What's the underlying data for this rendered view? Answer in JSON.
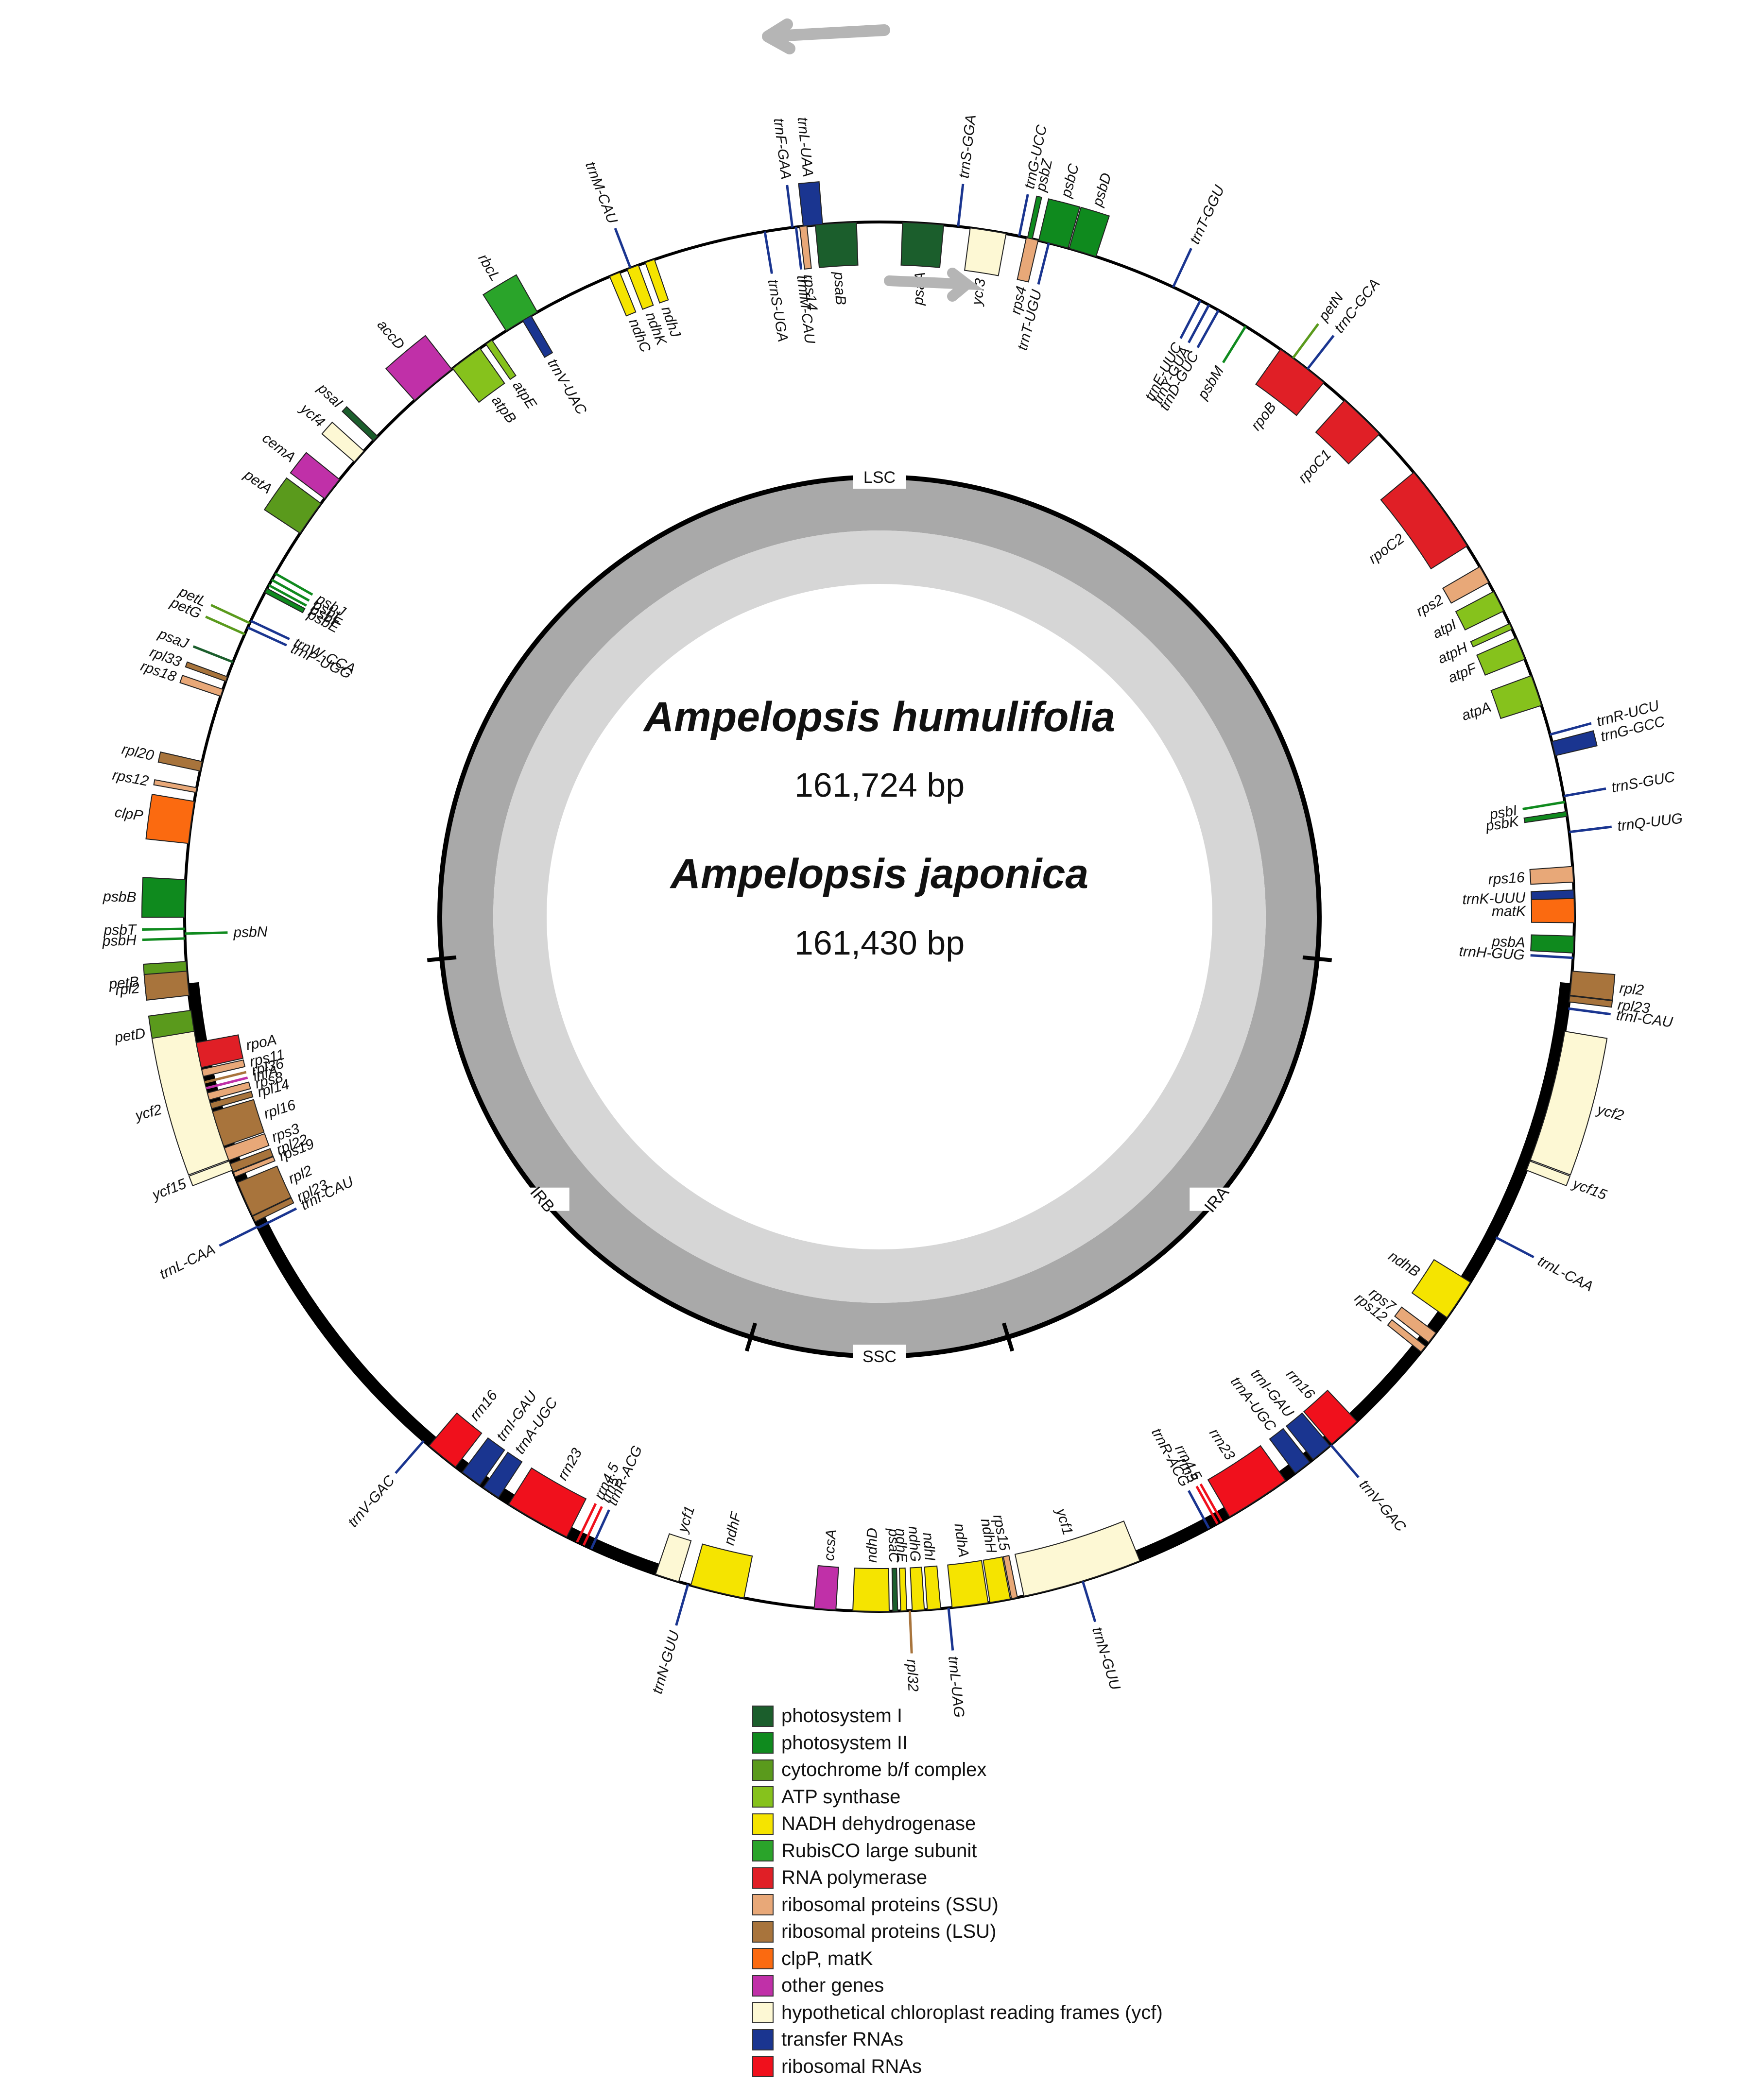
{
  "center": {
    "species_1": "Ampelopsis humulifolia",
    "length_1": "161,724 bp",
    "species_2": "Ampelopsis japonica",
    "length_2": "161,430 bp"
  },
  "regions": [
    "LSC",
    "IRA",
    "SSC",
    "IRB"
  ],
  "categories": {
    "psI": "#1b5e2c",
    "psII": "#0f8a1e",
    "cyt": "#5a9a1c",
    "atp": "#86c21c",
    "ndh": "#f5e400",
    "rbc": "#2aa42a",
    "rpo": "#e01f26",
    "ssu": "#e8a878",
    "lsu": "#a8743c",
    "clp": "#fb6a10",
    "oth": "#c030a8",
    "ycf": "#fdf8d4",
    "trn": "#1a3590",
    "rrn": "#f0101c"
  },
  "legend": [
    {
      "label": "photosystem I",
      "color": "#1b5e2c"
    },
    {
      "label": "photosystem II",
      "color": "#0f8a1e"
    },
    {
      "label": "cytochrome b/f complex",
      "color": "#5a9a1c"
    },
    {
      "label": "ATP synthase",
      "color": "#86c21c"
    },
    {
      "label": "NADH dehydrogenase",
      "color": "#f5e400"
    },
    {
      "label": "RubisCO large subunit",
      "color": "#2aa42a"
    },
    {
      "label": "RNA polymerase",
      "color": "#e01f26"
    },
    {
      "label": "ribosomal proteins (SSU)",
      "color": "#e8a878"
    },
    {
      "label": "ribosomal proteins (LSU)",
      "color": "#a8743c"
    },
    {
      "label": "clpP, matK",
      "color": "#fb6a10"
    },
    {
      "label": "other genes",
      "color": "#c030a8"
    },
    {
      "label": "hypothetical chloroplast reading frames (ycf)",
      "color": "#fdf8d4"
    },
    {
      "label": "transfer RNAs",
      "color": "#1a3590"
    },
    {
      "label": "ribosomal RNAs",
      "color": "#f0101c"
    }
  ],
  "genes": [
    {
      "name": "trnS-GGA",
      "a": 6.5,
      "w": 0.2,
      "o": 1,
      "c": "trn"
    },
    {
      "name": "trnL-UAA",
      "a": 354.5,
      "w": 1.6,
      "o": 1,
      "c": "trn"
    },
    {
      "name": "trnF-GAA",
      "a": 352.8,
      "w": 0.3,
      "o": 1,
      "c": "trn"
    },
    {
      "name": "trnM-CAU",
      "a": 339,
      "w": 0.3,
      "o": 1,
      "c": "trn"
    },
    {
      "name": "rbcL",
      "a": 329,
      "w": 3,
      "o": 1,
      "c": "rbc"
    },
    {
      "name": "accD",
      "a": 320,
      "w": 4,
      "o": 1,
      "c": "oth"
    },
    {
      "name": "psaI",
      "a": 313.5,
      "w": 0.5,
      "o": 1,
      "c": "psI"
    },
    {
      "name": "ycf4",
      "a": 311.5,
      "w": 1.2,
      "o": 1,
      "c": "ycf"
    },
    {
      "name": "cemA",
      "a": 308,
      "w": 2,
      "o": 1,
      "c": "oth"
    },
    {
      "name": "petA",
      "a": 305,
      "w": 3,
      "o": 1,
      "c": "cyt"
    },
    {
      "name": "petL",
      "a": 295,
      "w": 0.3,
      "o": 1,
      "c": "cyt"
    },
    {
      "name": "petG",
      "a": 294,
      "w": 0.3,
      "o": 1,
      "c": "cyt"
    },
    {
      "name": "psaJ",
      "a": 291.5,
      "w": 0.3,
      "o": 1,
      "c": "psI"
    },
    {
      "name": "rpl33",
      "a": 290,
      "w": 0.4,
      "o": 1,
      "c": "lsu"
    },
    {
      "name": "rps18",
      "a": 288.8,
      "w": 0.6,
      "o": 1,
      "c": "ssu"
    },
    {
      "name": "rpl20",
      "a": 282.5,
      "w": 0.8,
      "o": 1,
      "c": "lsu"
    },
    {
      "name": "rps12",
      "a": 280.5,
      "w": 0.4,
      "o": 1,
      "c": "ssu"
    },
    {
      "name": "clpP",
      "a": 277.8,
      "w": 3.5,
      "o": 1,
      "c": "clp"
    },
    {
      "name": "psbB",
      "a": 271.5,
      "w": 3.1,
      "o": 1,
      "c": "psII"
    },
    {
      "name": "psbT",
      "a": 269,
      "w": 0.3,
      "o": 1,
      "c": "psII"
    },
    {
      "name": "psbH",
      "a": 268.2,
      "w": 0.3,
      "o": 1,
      "c": "psII"
    },
    {
      "name": "petB",
      "a": 265,
      "w": 2.6,
      "o": 1,
      "c": "cyt"
    },
    {
      "name": "petD",
      "a": 261,
      "w": 2.5,
      "o": 1,
      "c": "cyt"
    },
    {
      "name": "trnQ-UUG",
      "a": 83,
      "w": 0.2,
      "o": 1,
      "c": "trn"
    },
    {
      "name": "trnS-GUC",
      "a": 80,
      "w": 0.2,
      "o": 1,
      "c": "trn"
    },
    {
      "name": "trnG-GCC",
      "a": 76,
      "w": 1.2,
      "o": 1,
      "c": "trn"
    },
    {
      "name": "trnR-UCU",
      "a": 74.8,
      "w": 0.3,
      "o": 1,
      "c": "trn"
    },
    {
      "name": "trnT-GGU",
      "a": 25,
      "w": 0.2,
      "o": 1,
      "c": "trn"
    },
    {
      "name": "psbD",
      "a": 17,
      "w": 2.3,
      "o": 1,
      "c": "psII"
    },
    {
      "name": "psbC",
      "a": 14.5,
      "w": 2.5,
      "o": 1,
      "c": "psII"
    },
    {
      "name": "psbZ",
      "a": 12.5,
      "w": 0.4,
      "o": 1,
      "c": "psII"
    },
    {
      "name": "trnG-UCC",
      "a": 11.6,
      "w": 0.2,
      "o": 1,
      "c": "trn"
    },
    {
      "name": "trnC-GCA",
      "a": 38,
      "w": 0.2,
      "o": 1,
      "c": "trn"
    },
    {
      "name": "petN",
      "a": 36.5,
      "w": 0.2,
      "o": 1,
      "c": "cyt"
    },
    {
      "name": "rpl2",
      "a": 95.5,
      "w": 2,
      "o": 1,
      "c": "lsu"
    },
    {
      "name": "rpl23",
      "a": 96.8,
      "w": 0.5,
      "o": 1,
      "c": "lsu"
    },
    {
      "name": "trnI-CAU",
      "a": 97.6,
      "w": 0.2,
      "o": 1,
      "c": "trn"
    },
    {
      "name": "ycf2",
      "a": 105,
      "w": 11,
      "o": 1,
      "c": "ycf"
    },
    {
      "name": "ycf15",
      "a": 111,
      "w": 0.8,
      "o": 1,
      "c": "ycf"
    },
    {
      "name": "rpl2",
      "a": 264.5,
      "w": 2,
      "o": 1,
      "c": "lsu"
    },
    {
      "name": "ycf2",
      "a": 255,
      "w": 11,
      "o": 1,
      "c": "ycf"
    },
    {
      "name": "ycf15",
      "a": 249,
      "w": 0.8,
      "o": 1,
      "c": "ycf"
    },
    {
      "name": "trnL-CAA",
      "a": 243.5,
      "w": 0.2,
      "o": 1,
      "c": "trn"
    },
    {
      "name": "trnV-GAC",
      "a": 221,
      "w": 0.2,
      "o": 1,
      "c": "trn"
    },
    {
      "name": "trnN-GUU",
      "a": 196,
      "w": 0.2,
      "o": 1,
      "c": "trn"
    },
    {
      "name": "trnL-UAG",
      "a": 174.3,
      "w": 0.2,
      "o": 1,
      "c": "trn"
    },
    {
      "name": "rpl32",
      "a": 177.5,
      "w": 0.2,
      "o": 1,
      "c": "lsu"
    },
    {
      "name": "trnN-GUU",
      "a": 163,
      "w": 0.2,
      "o": 1,
      "c": "trn"
    },
    {
      "name": "trnL-CAA",
      "a": 117.5,
      "w": 0.2,
      "o": 1,
      "c": "trn"
    },
    {
      "name": "trnV-GAC",
      "a": 139.5,
      "w": 0.2,
      "o": 1,
      "c": "trn"
    },
    {
      "name": "ycf3",
      "a": 9,
      "w": 3,
      "o": -1,
      "c": "ycf"
    },
    {
      "name": "psaA",
      "a": 3.6,
      "w": 3.4,
      "o": -1,
      "c": "psI"
    },
    {
      "name": "psaB",
      "a": 356.4,
      "w": 3.4,
      "o": -1,
      "c": "psI"
    },
    {
      "name": "rps14",
      "a": 353.7,
      "w": 0.6,
      "o": -1,
      "c": "ssu"
    },
    {
      "name": "trnfM-CAU",
      "a": 353.1,
      "w": 0.2,
      "o": -1,
      "c": "trn"
    },
    {
      "name": "rps4",
      "a": 12.7,
      "w": 1,
      "o": -1,
      "c": "ssu"
    },
    {
      "name": "trnT-UGU",
      "a": 14.1,
      "w": 0.2,
      "o": -1,
      "c": "trn"
    },
    {
      "name": "trnS-UGA",
      "a": 350.5,
      "w": 0.2,
      "o": -1,
      "c": "trn"
    },
    {
      "name": "ndhJ",
      "a": 340.7,
      "w": 0.8,
      "o": -1,
      "c": "ndh"
    },
    {
      "name": "ndhK",
      "a": 339.2,
      "w": 1,
      "o": -1,
      "c": "ndh"
    },
    {
      "name": "ndhC",
      "a": 337.6,
      "w": 0.9,
      "o": -1,
      "c": "ndh"
    },
    {
      "name": "trnV-UAC",
      "a": 329.5,
      "w": 0.8,
      "o": -1,
      "c": "trn"
    },
    {
      "name": "atpE",
      "a": 325.8,
      "w": 0.6,
      "o": -1,
      "c": "atp"
    },
    {
      "name": "atpB",
      "a": 323.5,
      "w": 2.8,
      "o": -1,
      "c": "atp"
    },
    {
      "name": "rpoB",
      "a": 37.5,
      "w": 4.5,
      "o": -1,
      "c": "rpo"
    },
    {
      "name": "rpoC1",
      "a": 44,
      "w": 4,
      "o": -1,
      "c": "rpo"
    },
    {
      "name": "rpoC2",
      "a": 54,
      "w": 7.5,
      "o": -1,
      "c": "rpo"
    },
    {
      "name": "rps2",
      "a": 60.5,
      "w": 1.5,
      "o": -1,
      "c": "ssu"
    },
    {
      "name": "atpI",
      "a": 63,
      "w": 1.8,
      "o": -1,
      "c": "atp"
    },
    {
      "name": "atpH",
      "a": 65.3,
      "w": 0.5,
      "o": -1,
      "c": "atp"
    },
    {
      "name": "atpF",
      "a": 67.3,
      "w": 1.9,
      "o": -1,
      "c": "atp"
    },
    {
      "name": "atpA",
      "a": 71,
      "w": 2.6,
      "o": -1,
      "c": "atp"
    },
    {
      "name": "psbI",
      "a": 80.5,
      "w": 0.2,
      "o": -1,
      "c": "psII"
    },
    {
      "name": "psbK",
      "a": 81.5,
      "w": 0.4,
      "o": -1,
      "c": "psII"
    },
    {
      "name": "rps16",
      "a": 86.5,
      "w": 1.3,
      "o": -1,
      "c": "ssu"
    },
    {
      "name": "trnK-UUU",
      "a": 88.3,
      "w": 1,
      "o": -1,
      "c": "trn"
    },
    {
      "name": "matK",
      "a": 89.5,
      "w": 2,
      "o": -1,
      "c": "clp"
    },
    {
      "name": "psbA",
      "a": 92.3,
      "w": 1.4,
      "o": -1,
      "c": "psII"
    },
    {
      "name": "trnH-GUG",
      "a": 93.4,
      "w": 0.2,
      "o": -1,
      "c": "trn"
    },
    {
      "name": "trnE-UUC",
      "a": 27.5,
      "w": 0.2,
      "o": -1,
      "c": "trn"
    },
    {
      "name": "trnY-GUA",
      "a": 28.3,
      "w": 0.2,
      "o": -1,
      "c": "trn"
    },
    {
      "name": "trnD-GUC",
      "a": 29.2,
      "w": 0.2,
      "o": -1,
      "c": "trn"
    },
    {
      "name": "psbM",
      "a": 31.8,
      "w": 0.2,
      "o": -1,
      "c": "psII"
    },
    {
      "name": "psbJ",
      "a": 299.6,
      "w": 0.2,
      "o": -1,
      "c": "psII"
    },
    {
      "name": "psbL",
      "a": 299,
      "w": 0.2,
      "o": -1,
      "c": "psII"
    },
    {
      "name": "psbF",
      "a": 298.5,
      "w": 0.2,
      "o": -1,
      "c": "psII"
    },
    {
      "name": "psbE",
      "a": 298,
      "w": 0.4,
      "o": -1,
      "c": "psII"
    },
    {
      "name": "trnW-CCA",
      "a": 295.2,
      "w": 0.2,
      "o": -1,
      "c": "trn"
    },
    {
      "name": "trnP-UGG",
      "a": 294.6,
      "w": 0.2,
      "o": -1,
      "c": "trn"
    },
    {
      "name": "psbN",
      "a": 268.6,
      "w": 0.2,
      "o": -1,
      "c": "psII"
    },
    {
      "name": "rpoA",
      "a": 258.5,
      "w": 2.1,
      "o": -1,
      "c": "rpo"
    },
    {
      "name": "rps11",
      "a": 257,
      "w": 0.6,
      "o": -1,
      "c": "ssu"
    },
    {
      "name": "rpl36",
      "a": 256.2,
      "w": 0.3,
      "o": -1,
      "c": "lsu"
    },
    {
      "name": "infA",
      "a": 255.7,
      "w": 0.3,
      "o": -1,
      "c": "oth"
    },
    {
      "name": "rps8",
      "a": 255,
      "w": 0.6,
      "o": -1,
      "c": "ssu"
    },
    {
      "name": "rpl14",
      "a": 254.2,
      "w": 0.5,
      "o": -1,
      "c": "lsu"
    },
    {
      "name": "rpl16",
      "a": 252.2,
      "w": 3,
      "o": -1,
      "c": "lsu"
    },
    {
      "name": "rps3",
      "a": 250,
      "w": 1.1,
      "o": -1,
      "c": "ssu"
    },
    {
      "name": "rpl22",
      "a": 248.8,
      "w": 0.7,
      "o": -1,
      "c": "lsu"
    },
    {
      "name": "rps19",
      "a": 248.2,
      "w": 0.4,
      "o": -1,
      "c": "ssu"
    },
    {
      "name": "rpl2",
      "a": 246,
      "w": 3,
      "o": -1,
      "c": "lsu"
    },
    {
      "name": "rpl23",
      "a": 244.2,
      "w": 0.5,
      "o": -1,
      "c": "lsu"
    },
    {
      "name": "trnI-CAU",
      "a": 243.4,
      "w": 0.2,
      "o": -1,
      "c": "trn"
    },
    {
      "name": "ndhB",
      "a": 123.5,
      "w": 3.5,
      "o": -1,
      "c": "ndh"
    },
    {
      "name": "rps7",
      "a": 127.3,
      "w": 1,
      "o": -1,
      "c": "ssu"
    },
    {
      "name": "rps12",
      "a": 128.5,
      "w": 0.6,
      "o": -1,
      "c": "ssu"
    },
    {
      "name": "rrn16",
      "a": 138,
      "w": 2.8,
      "o": -1,
      "c": "rrn"
    },
    {
      "name": "trnI-GAU",
      "a": 140.5,
      "w": 1.8,
      "o": -1,
      "c": "trn"
    },
    {
      "name": "trnA-UGC",
      "a": 142.5,
      "w": 1.5,
      "o": -1,
      "c": "trn"
    },
    {
      "name": "rrn23",
      "a": 147,
      "w": 5.5,
      "o": -1,
      "c": "rrn"
    },
    {
      "name": "rrn4.5",
      "a": 150.5,
      "w": 0.2,
      "o": -1,
      "c": "rrn"
    },
    {
      "name": "rrn5",
      "a": 150.9,
      "w": 0.2,
      "o": -1,
      "c": "rrn"
    },
    {
      "name": "trnR-ACG",
      "a": 151.7,
      "w": 0.2,
      "o": -1,
      "c": "trn"
    },
    {
      "name": "ycf1",
      "a": 163,
      "w": 10,
      "o": -1,
      "c": "ycf"
    },
    {
      "name": "rps15",
      "a": 168.8,
      "w": 0.5,
      "o": -1,
      "c": "ssu"
    },
    {
      "name": "ndhH",
      "a": 170,
      "w": 1.7,
      "o": -1,
      "c": "ndh"
    },
    {
      "name": "ndhA",
      "a": 172.5,
      "w": 3,
      "o": -1,
      "c": "ndh"
    },
    {
      "name": "ndhI",
      "a": 175.5,
      "w": 1.1,
      "o": -1,
      "c": "ndh"
    },
    {
      "name": "ndhG",
      "a": 176.8,
      "w": 1,
      "o": -1,
      "c": "ndh"
    },
    {
      "name": "ndhE",
      "a": 178,
      "w": 0.5,
      "o": -1,
      "c": "ndh"
    },
    {
      "name": "psaC",
      "a": 178.7,
      "w": 0.4,
      "o": -1,
      "c": "psI"
    },
    {
      "name": "ndhD",
      "a": 180.7,
      "w": 3,
      "o": -1,
      "c": "ndh"
    },
    {
      "name": "ccsA",
      "a": 184.5,
      "w": 1.8,
      "o": -1,
      "c": "oth"
    },
    {
      "name": "ndhF",
      "a": 193.5,
      "w": 4.5,
      "o": -1,
      "c": "ndh"
    },
    {
      "name": "ycf1",
      "a": 197.8,
      "w": 2,
      "o": -1,
      "c": "ycf"
    },
    {
      "name": "rrn23",
      "a": 209.5,
      "w": 5.5,
      "o": -1,
      "c": "rrn"
    },
    {
      "name": "rrn4.5",
      "a": 205.8,
      "w": 0.2,
      "o": -1,
      "c": "rrn"
    },
    {
      "name": "rrn5",
      "a": 205.2,
      "w": 0.2,
      "o": -1,
      "c": "rrn"
    },
    {
      "name": "trnR-ACG",
      "a": 204.5,
      "w": 0.2,
      "o": -1,
      "c": "trn"
    },
    {
      "name": "trnA-UGC",
      "a": 214,
      "w": 1.5,
      "o": -1,
      "c": "trn"
    },
    {
      "name": "trnI-GAU",
      "a": 216,
      "w": 1.8,
      "o": -1,
      "c": "trn"
    },
    {
      "name": "rrn16",
      "a": 219,
      "w": 2.8,
      "o": -1,
      "c": "rrn"
    }
  ]
}
